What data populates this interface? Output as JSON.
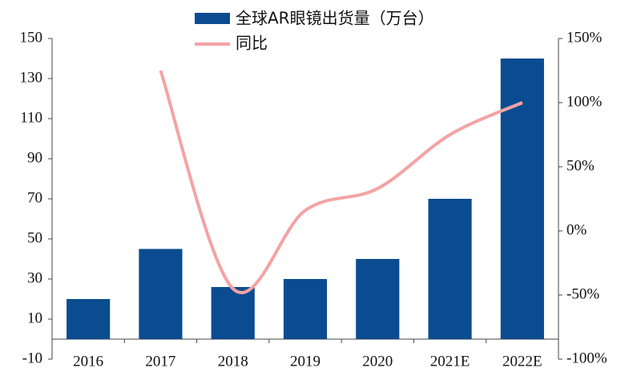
{
  "chart_data": {
    "type": "bar-line",
    "categories": [
      "2016",
      "2017",
      "2018",
      "2019",
      "2020",
      "2021E",
      "2022E"
    ],
    "series": [
      {
        "name": "全球AR眼镜出货量（万台）",
        "type": "bar",
        "color": "#0b4c91",
        "values": [
          20,
          45,
          26,
          30,
          40,
          70,
          140
        ]
      },
      {
        "name": "同比",
        "type": "line",
        "axis": "y2",
        "color": "#f4a3a4",
        "values": [
          null,
          125,
          -45,
          16,
          33,
          75,
          100
        ]
      }
    ],
    "ylim": [
      -10,
      150
    ],
    "yticks": [
      -10,
      10,
      30,
      50,
      70,
      90,
      110,
      130,
      150
    ],
    "y2lim": [
      -100,
      150
    ],
    "y2ticks": [
      {
        "value": -100,
        "label": "-100%"
      },
      {
        "value": -50,
        "label": "-50%"
      },
      {
        "value": 0,
        "label": "0%"
      },
      {
        "value": 50,
        "label": "50%"
      },
      {
        "value": 100,
        "label": "100%"
      },
      {
        "value": 150,
        "label": "150%"
      }
    ]
  }
}
